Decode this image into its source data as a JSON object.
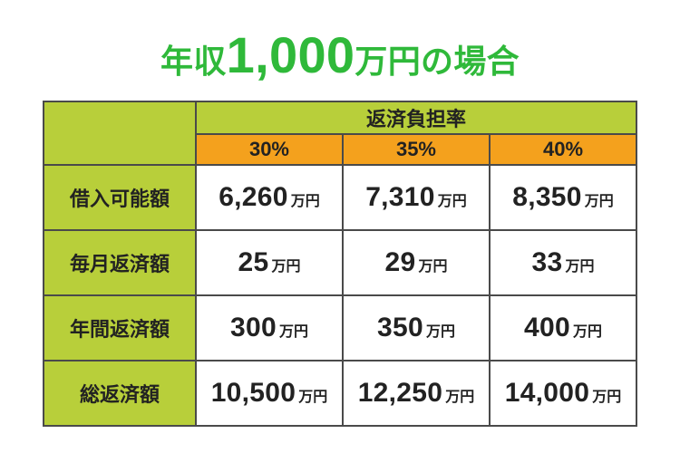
{
  "colors": {
    "title": "#2fb93a",
    "green_bg": "#b8cf3a",
    "orange_bg": "#f4a11d",
    "border": "#4a4a4a",
    "background": "#ffffff"
  },
  "title": {
    "pre": "年収",
    "big": "1,000",
    "post": "万円の場合"
  },
  "table": {
    "group_header": "返済負担率",
    "columns": [
      "30%",
      "35%",
      "40%"
    ],
    "row_labels": [
      "借入可能額",
      "毎月返済額",
      "年間返済額",
      "総返済額"
    ],
    "unit": "万円",
    "rows": [
      [
        "6,260",
        "7,310",
        "8,350"
      ],
      [
        "25",
        "29",
        "33"
      ],
      [
        "300",
        "350",
        "400"
      ],
      [
        "10,500",
        "12,250",
        "14,000"
      ]
    ]
  }
}
